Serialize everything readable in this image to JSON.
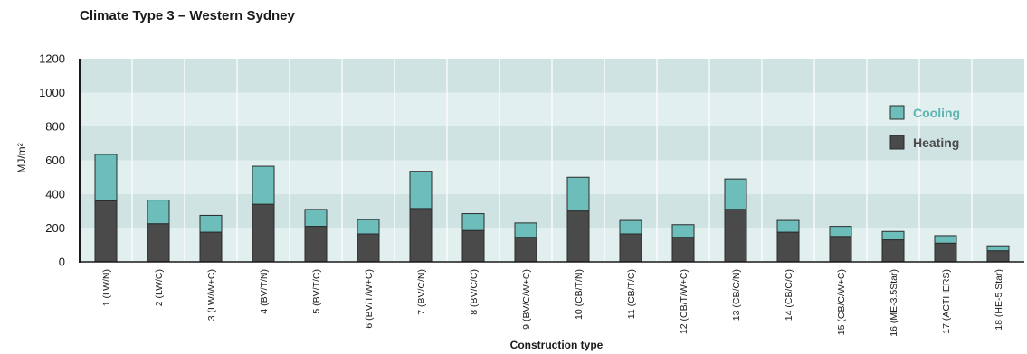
{
  "chart_data": {
    "type": "bar",
    "stacked": true,
    "title": "Climate Type 3 – Western Sydney",
    "xlabel": "Construction type",
    "ylabel": "MJ/m²",
    "ylim": [
      0,
      1200
    ],
    "yticks": [
      0,
      200,
      400,
      600,
      800,
      1000,
      1200
    ],
    "grid": "horizontal bands",
    "legend_position": "right",
    "categories": [
      "1 (LW/N)",
      "2 (LW/C)",
      "3 (LW/W+C)",
      "4 (BV/T/N)",
      "5 (BV/T/C)",
      "6 (BV/T/W+C)",
      "7 (BV/C/N)",
      "8 (BV/C/C)",
      "9 (BV/C/W+C)",
      "10 (CB/T/N)",
      "11 (CB/T/C)",
      "12 (CB/T/W+C)",
      "13 (CB/C/N)",
      "14 (CB/C/C)",
      "15 (CB/C/W+C)",
      "16 (ME-3.5Star)",
      "17 (ACTHERS)",
      "18 (HE-5 Star)"
    ],
    "series": [
      {
        "name": "Heating",
        "color": "#4a4a4a",
        "values": [
          360,
          225,
          175,
          340,
          210,
          165,
          315,
          185,
          145,
          300,
          165,
          145,
          310,
          175,
          150,
          130,
          110,
          65
        ]
      },
      {
        "name": "Cooling",
        "color": "#6dbdbb",
        "values": [
          275,
          140,
          100,
          225,
          100,
          85,
          220,
          100,
          85,
          200,
          80,
          75,
          180,
          70,
          60,
          50,
          45,
          30
        ]
      }
    ],
    "legend_order": [
      "Cooling",
      "Heating"
    ],
    "colors": {
      "band_light": "#e2efef",
      "band_dark": "#cfe3e3",
      "cooling_text": "#5fb3b2",
      "heating_text": "#4a4a4a"
    }
  }
}
